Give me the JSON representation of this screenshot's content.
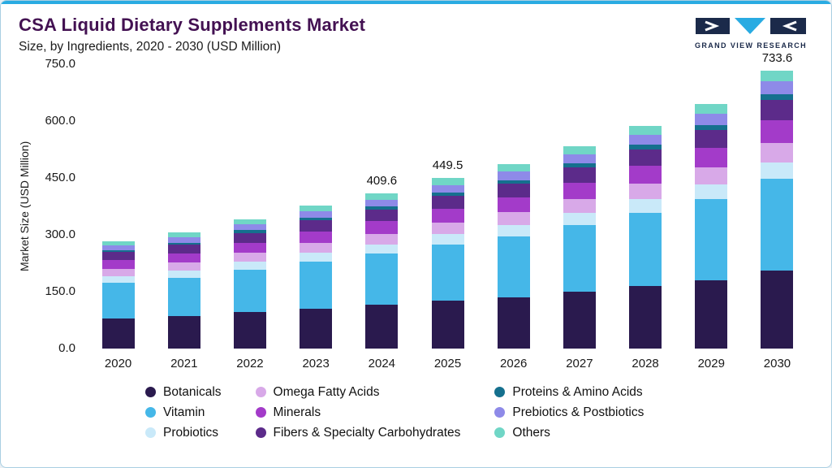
{
  "header": {
    "title": "CSA Liquid Dietary Supplements Market",
    "subtitle": "Size, by Ingredients, 2020 - 2030 (USD Million)",
    "logo_text": "GRAND VIEW RESEARCH"
  },
  "colors": {
    "accent_bar": "#29abe2",
    "title_text": "#431152",
    "logo_navy": "#1b2a4a",
    "logo_cyan": "#29abe2"
  },
  "chart_data": {
    "type": "bar",
    "stacked": true,
    "title": "CSA Liquid Dietary Supplements Market Size, by Ingredients, 2020 - 2030 (USD Million)",
    "xlabel": "",
    "ylabel": "Market Size (USD Million)",
    "ylim": [
      0,
      750
    ],
    "y_ticks": [
      "0.0",
      "150.0",
      "300.0",
      "450.0",
      "600.0",
      "750.0"
    ],
    "grid": false,
    "legend_position": "bottom",
    "categories": [
      "2020",
      "2021",
      "2022",
      "2023",
      "2024",
      "2025",
      "2026",
      "2027",
      "2028",
      "2029",
      "2030"
    ],
    "totals": [
      283.9,
      305.8,
      340.9,
      377.5,
      409.6,
      449.5,
      485.9,
      532.9,
      587.8,
      645.4,
      733.6
    ],
    "total_labels": {
      "2024": "409.6",
      "2025": "449.5",
      "2030": "733.6"
    },
    "series": [
      {
        "name": "Botanicals",
        "color": "#2a1a4e",
        "values": [
          79.5,
          85.6,
          95.5,
          105.7,
          114.7,
          125.9,
          136.1,
          149.2,
          164.6,
          180.7,
          205.4
        ]
      },
      {
        "name": "Vitamin",
        "color": "#45b7e8",
        "values": [
          93.7,
          100.9,
          112.5,
          124.6,
          135.2,
          148.3,
          160.3,
          175.9,
          194.0,
          213.0,
          242.1
        ]
      },
      {
        "name": "Probiotics",
        "color": "#c9e9f9",
        "values": [
          17.0,
          18.3,
          20.5,
          22.7,
          24.6,
          27.0,
          29.2,
          32.0,
          35.3,
          38.7,
          44.0
        ]
      },
      {
        "name": "Omega Fatty Acids",
        "color": "#d8a9e8",
        "values": [
          19.9,
          21.4,
          23.9,
          26.4,
          28.7,
          31.5,
          34.0,
          37.3,
          41.1,
          45.2,
          51.4
        ]
      },
      {
        "name": "Minerals",
        "color": "#a33bc9",
        "values": [
          22.7,
          24.5,
          27.3,
          30.2,
          32.8,
          36.0,
          38.9,
          42.6,
          47.0,
          51.6,
          58.7
        ]
      },
      {
        "name": "Fibers & Specialty Carbohydrates",
        "color": "#5c2b8a",
        "values": [
          21.3,
          22.9,
          25.6,
          28.3,
          30.7,
          33.7,
          36.4,
          40.0,
          44.1,
          48.4,
          55.0
        ]
      },
      {
        "name": "Proteins & Amino Acids",
        "color": "#15708e",
        "values": [
          5.7,
          6.1,
          6.8,
          7.6,
          8.2,
          9.0,
          9.7,
          10.7,
          11.8,
          12.9,
          14.7
        ]
      },
      {
        "name": "Prebiotics & Postbiotics",
        "color": "#8e8ae8",
        "values": [
          12.8,
          13.8,
          15.3,
          17.0,
          18.4,
          20.2,
          21.9,
          24.0,
          26.5,
          29.0,
          33.0
        ]
      },
      {
        "name": "Others",
        "color": "#70d6c6",
        "values": [
          11.4,
          12.2,
          13.6,
          15.1,
          16.4,
          18.0,
          19.4,
          21.3,
          23.5,
          25.8,
          29.3
        ]
      }
    ]
  }
}
